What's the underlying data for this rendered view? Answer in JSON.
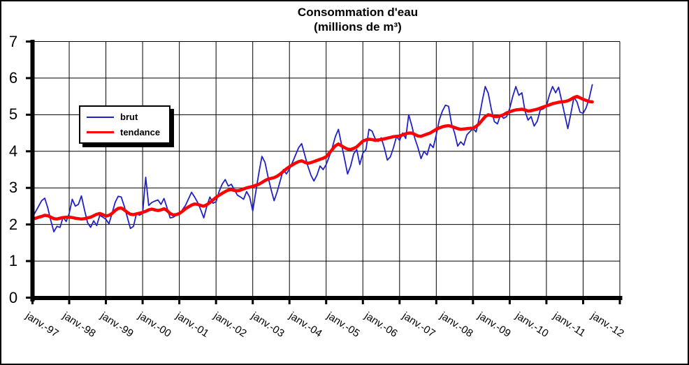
{
  "title": {
    "line1": "Consommation d'eau",
    "line2": "(millions de m³)"
  },
  "legend": {
    "items": [
      {
        "label": "brut"
      },
      {
        "label": "tendance"
      }
    ]
  },
  "chart_data": {
    "type": "line",
    "title": "Consommation d'eau (millions de m³)",
    "ylabel": "",
    "xlabel": "",
    "ylim": [
      0,
      7
    ],
    "y_ticks": [
      0,
      1,
      2,
      3,
      4,
      5,
      6,
      7
    ],
    "grid": true,
    "legend_position": "upper-left-inside",
    "x_tick_labels": [
      "janv.-97",
      "janv.-98",
      "janv.-99",
      "janv.-00",
      "janv.-01",
      "janv.-02",
      "janv.-03",
      "janv.-04",
      "janv.-05",
      "janv.-06",
      "janv.-07",
      "janv.-08",
      "janv.-09",
      "janv.-10",
      "janv.-11",
      "janv.-12"
    ],
    "x_unit": "month",
    "x_range_note": "monthly points from janv.-97 to avr.-12",
    "axis_color": "#000000",
    "series": [
      {
        "name": "brut",
        "color": "#2121CC",
        "width": 1.8,
        "values": [
          2.2,
          2.35,
          2.5,
          2.65,
          2.72,
          2.45,
          2.1,
          1.8,
          1.95,
          1.92,
          2.2,
          2.08,
          2.3,
          2.69,
          2.5,
          2.55,
          2.78,
          2.4,
          2.05,
          1.92,
          2.1,
          1.97,
          2.25,
          2.2,
          2.14,
          2.02,
          2.3,
          2.6,
          2.77,
          2.75,
          2.5,
          2.2,
          1.89,
          1.95,
          2.3,
          2.25,
          2.3,
          3.29,
          2.52,
          2.6,
          2.64,
          2.67,
          2.55,
          2.71,
          2.45,
          2.18,
          2.2,
          2.25,
          2.27,
          2.4,
          2.52,
          2.7,
          2.88,
          2.75,
          2.6,
          2.4,
          2.18,
          2.5,
          2.75,
          2.58,
          2.62,
          2.9,
          3.1,
          3.23,
          3.05,
          3.1,
          2.95,
          2.8,
          2.75,
          2.69,
          2.9,
          2.75,
          2.37,
          2.9,
          3.4,
          3.86,
          3.7,
          3.3,
          2.95,
          2.65,
          2.9,
          3.2,
          3.5,
          3.38,
          3.51,
          3.7,
          3.9,
          4.1,
          4.21,
          3.9,
          3.6,
          3.35,
          3.19,
          3.35,
          3.6,
          3.5,
          3.64,
          3.85,
          4.1,
          4.4,
          4.6,
          4.2,
          3.8,
          3.38,
          3.6,
          3.93,
          4.05,
          3.64,
          3.95,
          4.05,
          4.6,
          4.55,
          4.35,
          4.27,
          4.37,
          4.1,
          3.76,
          3.85,
          4.1,
          4.4,
          4.3,
          4.5,
          4.35,
          5.0,
          4.7,
          4.35,
          4.1,
          3.8,
          4.0,
          3.9,
          4.2,
          4.1,
          4.45,
          4.86,
          5.1,
          5.26,
          5.23,
          4.75,
          4.5,
          4.14,
          4.26,
          4.17,
          4.45,
          4.54,
          4.62,
          4.53,
          4.9,
          5.36,
          5.77,
          5.58,
          5.15,
          4.81,
          4.75,
          5.0,
          4.9,
          4.95,
          5.17,
          5.5,
          5.77,
          5.53,
          5.6,
          5.1,
          4.85,
          4.95,
          4.69,
          4.82,
          5.13,
          5.16,
          5.23,
          5.54,
          5.77,
          5.6,
          5.75,
          5.38,
          5.0,
          4.62,
          5.04,
          5.47,
          5.35,
          5.07,
          5.04,
          5.19,
          5.45,
          5.82
        ]
      },
      {
        "name": "tendance",
        "color": "#FF0000",
        "width": 4.5,
        "values": [
          2.15,
          2.17,
          2.2,
          2.22,
          2.25,
          2.24,
          2.2,
          2.16,
          2.15,
          2.17,
          2.19,
          2.2,
          2.2,
          2.19,
          2.17,
          2.16,
          2.15,
          2.16,
          2.18,
          2.2,
          2.24,
          2.28,
          2.3,
          2.27,
          2.23,
          2.25,
          2.3,
          2.38,
          2.44,
          2.45,
          2.4,
          2.33,
          2.28,
          2.27,
          2.29,
          2.31,
          2.33,
          2.36,
          2.4,
          2.42,
          2.4,
          2.38,
          2.4,
          2.43,
          2.38,
          2.3,
          2.26,
          2.27,
          2.3,
          2.36,
          2.43,
          2.48,
          2.53,
          2.56,
          2.55,
          2.52,
          2.5,
          2.54,
          2.6,
          2.67,
          2.74,
          2.8,
          2.85,
          2.9,
          2.94,
          2.95,
          2.93,
          2.92,
          2.94,
          2.97,
          3.0,
          3.02,
          3.04,
          3.07,
          3.1,
          3.15,
          3.2,
          3.24,
          3.26,
          3.28,
          3.32,
          3.38,
          3.45,
          3.52,
          3.58,
          3.63,
          3.68,
          3.72,
          3.74,
          3.7,
          3.67,
          3.69,
          3.72,
          3.75,
          3.78,
          3.81,
          3.85,
          3.95,
          4.05,
          4.15,
          4.2,
          4.15,
          4.1,
          4.06,
          4.05,
          4.08,
          4.12,
          4.2,
          4.28,
          4.31,
          4.33,
          4.32,
          4.3,
          4.31,
          4.32,
          4.34,
          4.36,
          4.38,
          4.4,
          4.41,
          4.42,
          4.45,
          4.48,
          4.5,
          4.5,
          4.46,
          4.42,
          4.41,
          4.44,
          4.47,
          4.5,
          4.55,
          4.6,
          4.64,
          4.67,
          4.69,
          4.7,
          4.68,
          4.65,
          4.62,
          4.6,
          4.61,
          4.62,
          4.63,
          4.63,
          4.68,
          4.75,
          4.85,
          4.95,
          5.0,
          4.98,
          4.95,
          4.95,
          4.97,
          5.0,
          5.05,
          5.08,
          5.11,
          5.13,
          5.14,
          5.15,
          5.13,
          5.1,
          5.11,
          5.13,
          5.15,
          5.18,
          5.21,
          5.24,
          5.27,
          5.3,
          5.32,
          5.34,
          5.35,
          5.36,
          5.38,
          5.42,
          5.47,
          5.5,
          5.46,
          5.42,
          5.39,
          5.36,
          5.35
        ]
      }
    ]
  }
}
